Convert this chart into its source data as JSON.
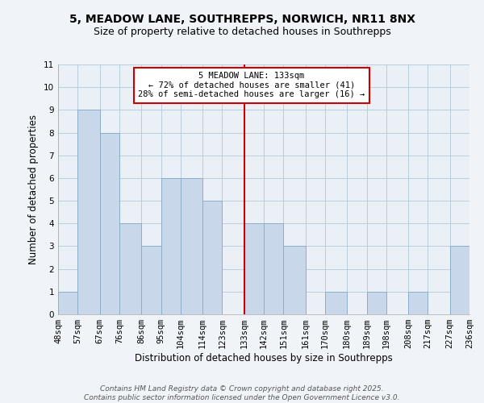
{
  "title": "5, MEADOW LANE, SOUTHREPPS, NORWICH, NR11 8NX",
  "subtitle": "Size of property relative to detached houses in Southrepps",
  "xlabel": "Distribution of detached houses by size in Southrepps",
  "ylabel": "Number of detached properties",
  "bin_edges": [
    48,
    57,
    67,
    76,
    86,
    95,
    104,
    114,
    123,
    133,
    142,
    151,
    161,
    170,
    180,
    189,
    198,
    208,
    217,
    227,
    236
  ],
  "bin_labels": [
    "48sqm",
    "57sqm",
    "67sqm",
    "76sqm",
    "86sqm",
    "95sqm",
    "104sqm",
    "114sqm",
    "123sqm",
    "133sqm",
    "142sqm",
    "151sqm",
    "161sqm",
    "170sqm",
    "180sqm",
    "189sqm",
    "198sqm",
    "208sqm",
    "217sqm",
    "227sqm",
    "236sqm"
  ],
  "counts": [
    1,
    9,
    8,
    4,
    3,
    6,
    6,
    5,
    0,
    4,
    4,
    3,
    0,
    1,
    0,
    1,
    0,
    1,
    0,
    3
  ],
  "bar_color": "#c8d8ea",
  "bar_edge_color": "#8aaec8",
  "marker_value": 133,
  "marker_color": "#cc0000",
  "ylim": [
    0,
    11
  ],
  "yticks": [
    0,
    1,
    2,
    3,
    4,
    5,
    6,
    7,
    8,
    9,
    10,
    11
  ],
  "grid_color": "#b8cedd",
  "bg_color": "#eaf0f6",
  "annotation_title": "5 MEADOW LANE: 133sqm",
  "annotation_line1": "← 72% of detached houses are smaller (41)",
  "annotation_line2": "28% of semi-detached houses are larger (16) →",
  "annotation_box_color": "#ffffff",
  "annotation_border_color": "#cc0000",
  "footer_line1": "Contains HM Land Registry data © Crown copyright and database right 2025.",
  "footer_line2": "Contains public sector information licensed under the Open Government Licence v3.0.",
  "title_fontsize": 10,
  "subtitle_fontsize": 9,
  "axis_label_fontsize": 8.5,
  "tick_fontsize": 7.5,
  "annotation_fontsize": 7.5,
  "footer_fontsize": 6.5
}
